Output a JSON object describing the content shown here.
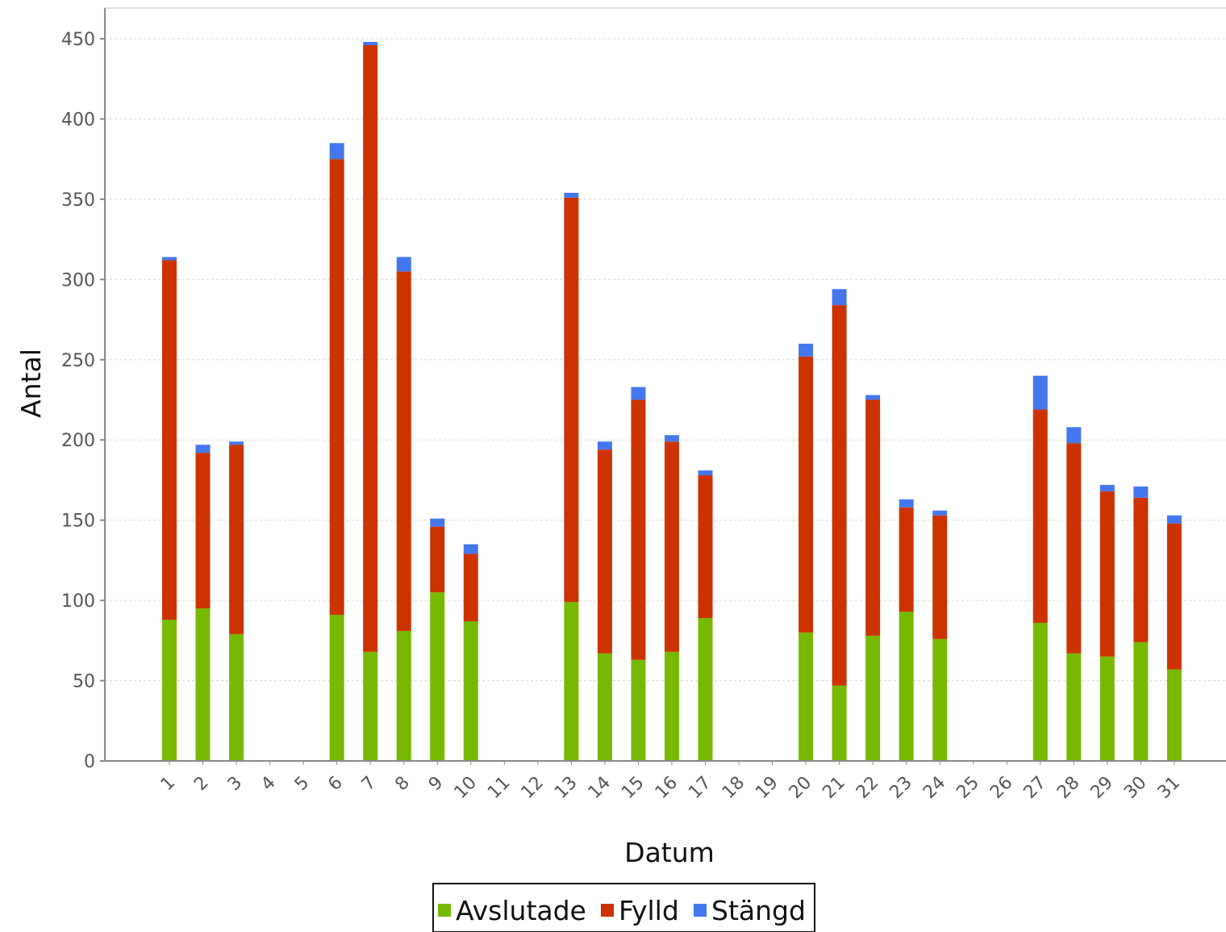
{
  "chart_data": {
    "type": "bar",
    "stacked": true,
    "xlabel": "Datum",
    "ylabel": "Antal",
    "ylim": [
      0,
      450
    ],
    "yticks": [
      0,
      50,
      100,
      150,
      200,
      250,
      300,
      350,
      400,
      450
    ],
    "grid": true,
    "legend_position": "bottom-center",
    "categories": [
      "1",
      "2",
      "3",
      "4",
      "5",
      "6",
      "7",
      "8",
      "9",
      "10",
      "11",
      "12",
      "13",
      "14",
      "15",
      "16",
      "17",
      "18",
      "19",
      "20",
      "21",
      "22",
      "23",
      "24",
      "25",
      "26",
      "27",
      "28",
      "29",
      "30",
      "31"
    ],
    "series": [
      {
        "name": "Avslutade",
        "color": "#76b900",
        "values": [
          88,
          95,
          79,
          0,
          0,
          91,
          68,
          81,
          105,
          87,
          0,
          0,
          99,
          67,
          63,
          68,
          89,
          0,
          0,
          80,
          47,
          78,
          93,
          76,
          0,
          0,
          86,
          67,
          65,
          74,
          57
        ]
      },
      {
        "name": "Fylld",
        "color": "#cc3300",
        "values": [
          224,
          97,
          118,
          0,
          0,
          284,
          378,
          224,
          41,
          42,
          0,
          0,
          252,
          127,
          162,
          131,
          89,
          0,
          0,
          172,
          237,
          147,
          65,
          77,
          0,
          0,
          133,
          131,
          103,
          90,
          91
        ]
      },
      {
        "name": "Stängd",
        "color": "#4477ee",
        "values": [
          2,
          5,
          2,
          0,
          0,
          10,
          2,
          9,
          5,
          6,
          0,
          0,
          3,
          5,
          8,
          4,
          3,
          0,
          0,
          8,
          10,
          3,
          5,
          3,
          0,
          0,
          21,
          10,
          4,
          7,
          5
        ]
      }
    ]
  },
  "colors": {
    "grid": "#d6d6d6",
    "axis": "#888888",
    "background": "#ffffff"
  }
}
